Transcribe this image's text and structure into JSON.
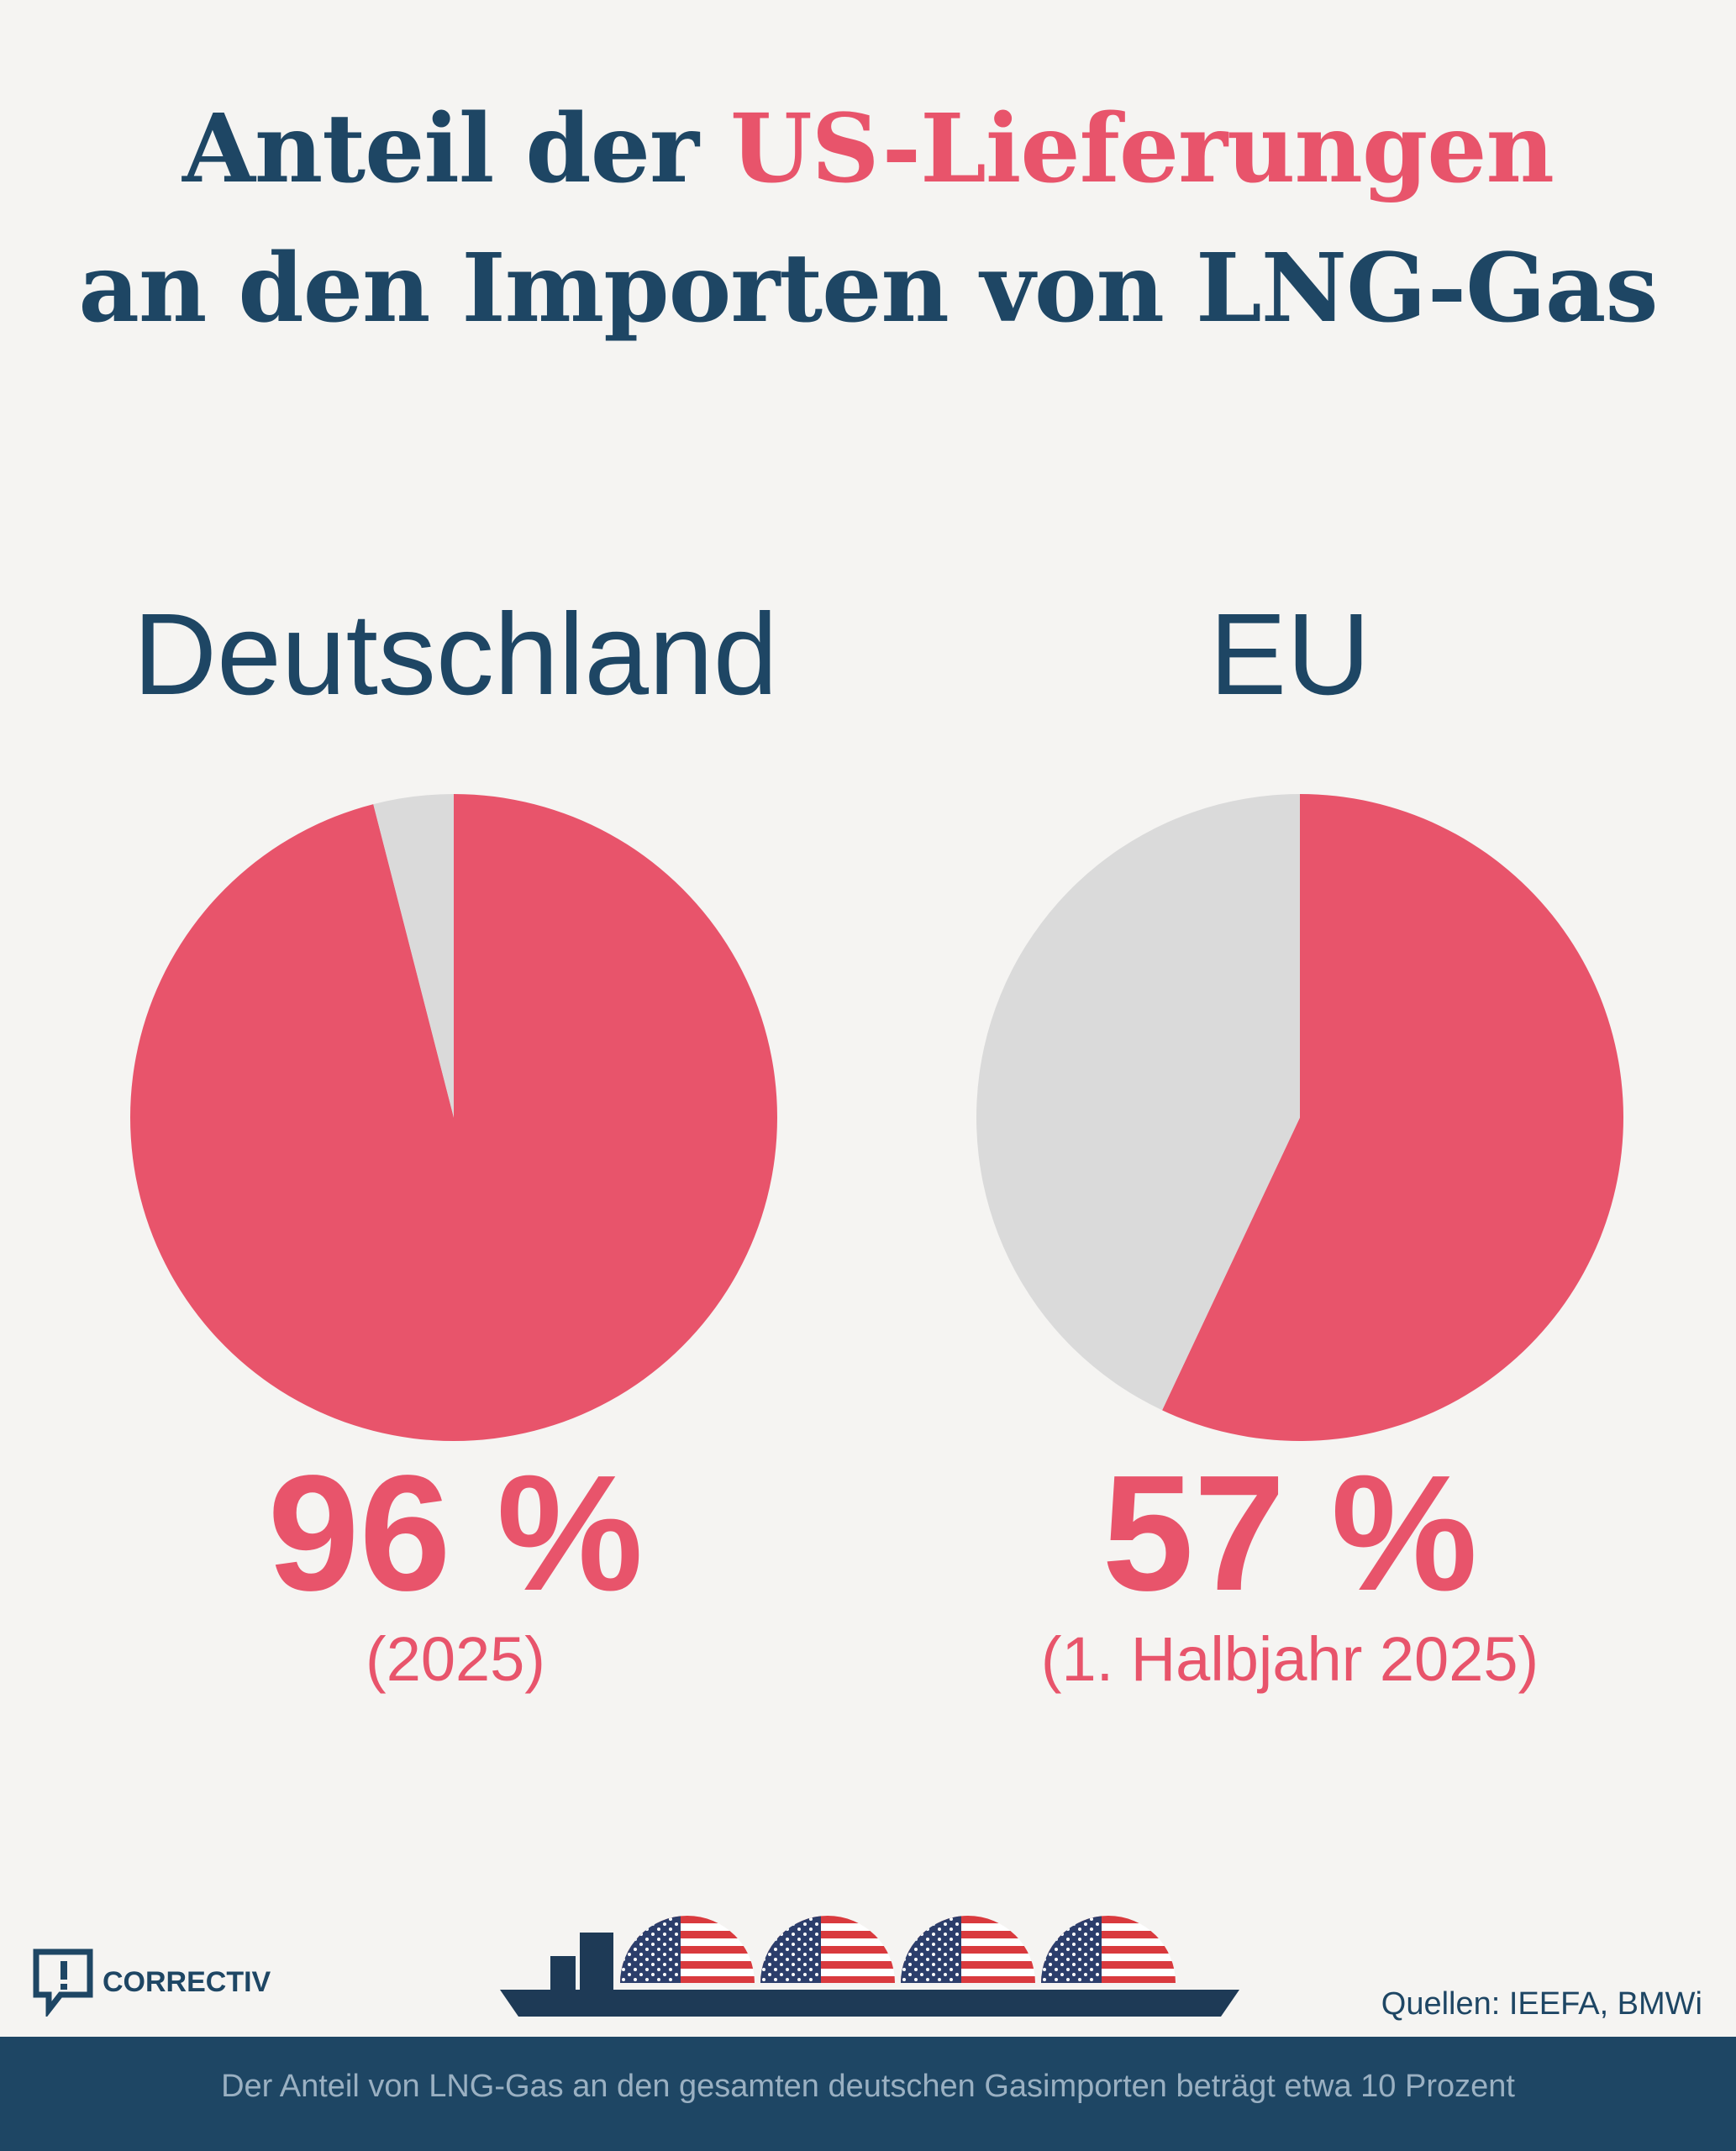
{
  "title": {
    "line1_prefix": "Anteil der ",
    "line1_highlight": "US-Lieferungen",
    "line2": "an den Importen von LNG-Gas"
  },
  "colors": {
    "us": "#e8546b",
    "other": "#dadada",
    "navy": "#1e4664",
    "background": "#f5f4f2"
  },
  "chart_data": [
    {
      "type": "pie",
      "title": "Deutschland",
      "slices": [
        {
          "value": 96
        },
        {
          "value": 4
        }
      ],
      "value_label": "96 %",
      "period": "(2025)"
    },
    {
      "type": "pie",
      "title": "EU",
      "slices": [
        {
          "value": 57
        },
        {
          "value": 43
        }
      ],
      "value_label": "57 %",
      "period": "(1. Halbjahr 2025)"
    }
  ],
  "branding": {
    "logo_text": "CORRECTIV",
    "logo_icon": "speech-bubble-exclamation-icon"
  },
  "sources": "Quellen: IEEFA, BMWi",
  "footnote": "Der Anteil von LNG-Gas an den gesamten deutschen Gasimporten beträgt etwa 10 Prozent",
  "illustration": {
    "icon": "lng-tanker-ship-icon",
    "tank_icon": "us-flag-icon",
    "tank_count": 4
  }
}
